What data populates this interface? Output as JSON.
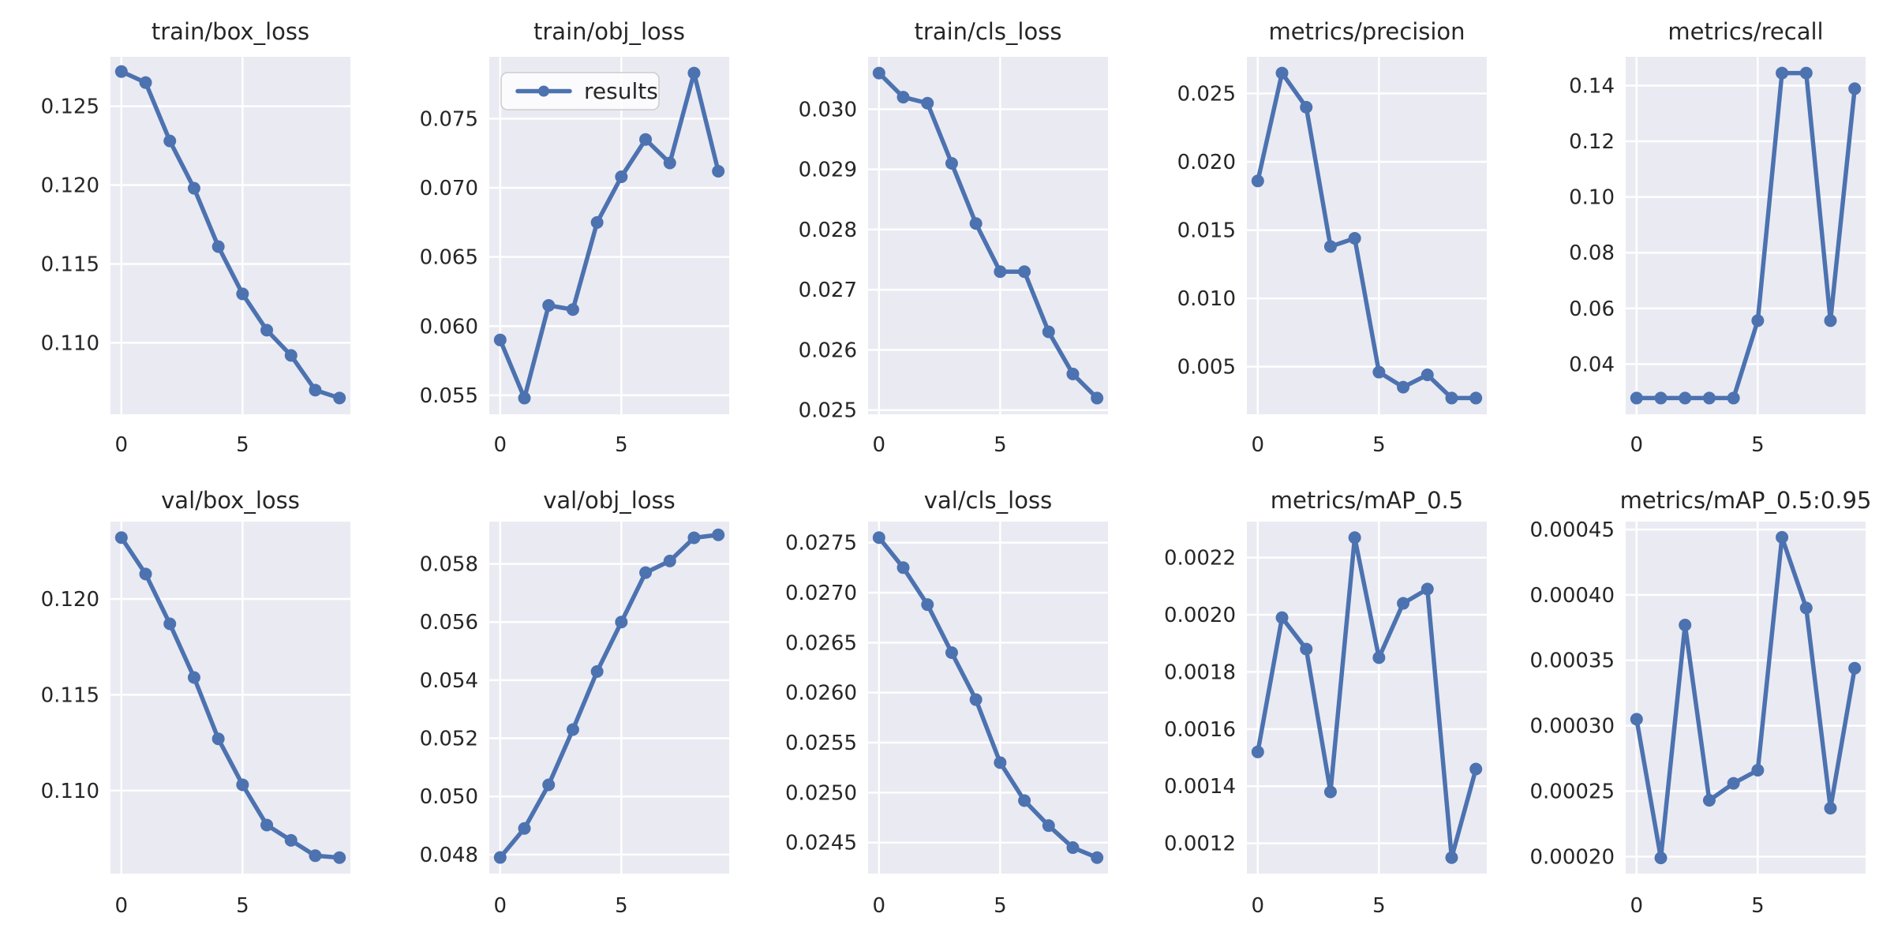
{
  "figure": {
    "kind": "matplotlib-results-figure",
    "background": "#ffffff",
    "style": {
      "axes_bg": "#eaeaf2",
      "grid_color": "#ffffff",
      "line_color": "#4c72b0",
      "text_color": "#262626",
      "legend_bg": "rgba(255,255,255,0.8)",
      "legend_border": "#cccccc"
    },
    "legend": {
      "label": "results",
      "subplot": "train/obj_loss",
      "position": "upper-left"
    },
    "grid": {
      "rows": 2,
      "cols": 5
    }
  },
  "chart_data": [
    {
      "type": "line",
      "title": "train/box_loss",
      "series_name": "results",
      "x": [
        0,
        1,
        2,
        3,
        4,
        5,
        6,
        7,
        8,
        9
      ],
      "y": [
        0.1272,
        0.1265,
        0.1228,
        0.1198,
        0.1161,
        0.1131,
        0.1108,
        0.1092,
        0.107,
        0.1065
      ],
      "xlim": [
        -0.45,
        9.45
      ],
      "ylim": [
        0.105465,
        0.128135
      ],
      "xticks": {
        "values": [
          0,
          5
        ],
        "labels": [
          "0",
          "5"
        ]
      },
      "yticks": {
        "values": [
          0.11,
          0.115,
          0.12,
          0.125
        ],
        "labels": [
          "0.110",
          "0.115",
          "0.120",
          "0.125"
        ]
      },
      "grid": true,
      "legend_visible": false
    },
    {
      "type": "line",
      "title": "train/obj_loss",
      "series_name": "results",
      "x": [
        0,
        1,
        2,
        3,
        4,
        5,
        6,
        7,
        8,
        9
      ],
      "y": [
        0.059,
        0.0548,
        0.0615,
        0.0612,
        0.0675,
        0.0708,
        0.0735,
        0.0718,
        0.0783,
        0.0712
      ],
      "xlim": [
        -0.45,
        9.45
      ],
      "ylim": [
        0.053625,
        0.079475
      ],
      "xticks": {
        "values": [
          0,
          5
        ],
        "labels": [
          "0",
          "5"
        ]
      },
      "yticks": {
        "values": [
          0.055,
          0.06,
          0.065,
          0.07,
          0.075
        ],
        "labels": [
          "0.055",
          "0.060",
          "0.065",
          "0.070",
          "0.075"
        ]
      },
      "grid": true,
      "legend_visible": true
    },
    {
      "type": "line",
      "title": "train/cls_loss",
      "series_name": "results",
      "x": [
        0,
        1,
        2,
        3,
        4,
        5,
        6,
        7,
        8,
        9
      ],
      "y": [
        0.0306,
        0.0302,
        0.0301,
        0.0291,
        0.0281,
        0.0273,
        0.0273,
        0.0263,
        0.0256,
        0.0252
      ],
      "xlim": [
        -0.45,
        9.45
      ],
      "ylim": [
        0.02493,
        0.03087
      ],
      "xticks": {
        "values": [
          0,
          5
        ],
        "labels": [
          "0",
          "5"
        ]
      },
      "yticks": {
        "values": [
          0.025,
          0.026,
          0.027,
          0.028,
          0.029,
          0.03
        ],
        "labels": [
          "0.025",
          "0.026",
          "0.027",
          "0.028",
          "0.029",
          "0.030"
        ]
      },
      "grid": true,
      "legend_visible": false
    },
    {
      "type": "line",
      "title": "metrics/precision",
      "series_name": "results",
      "x": [
        0,
        1,
        2,
        3,
        4,
        5,
        6,
        7,
        8,
        9
      ],
      "y": [
        0.0186,
        0.0265,
        0.024,
        0.0138,
        0.0144,
        0.0046,
        0.0035,
        0.0044,
        0.0027,
        0.0027
      ],
      "xlim": [
        -0.45,
        9.45
      ],
      "ylim": [
        0.00151,
        0.02769
      ],
      "xticks": {
        "values": [
          0,
          5
        ],
        "labels": [
          "0",
          "5"
        ]
      },
      "yticks": {
        "values": [
          0.005,
          0.01,
          0.015,
          0.02,
          0.025
        ],
        "labels": [
          "0.005",
          "0.010",
          "0.015",
          "0.020",
          "0.025"
        ]
      },
      "grid": true,
      "legend_visible": false
    },
    {
      "type": "line",
      "title": "metrics/recall",
      "series_name": "results",
      "x": [
        0,
        1,
        2,
        3,
        4,
        5,
        6,
        7,
        8,
        9
      ],
      "y": [
        0.0278,
        0.0278,
        0.0278,
        0.0278,
        0.0278,
        0.0556,
        0.1445,
        0.1445,
        0.0556,
        0.1389
      ],
      "xlim": [
        -0.45,
        9.45
      ],
      "ylim": [
        0.021965,
        0.150335
      ],
      "xticks": {
        "values": [
          0,
          5
        ],
        "labels": [
          "0",
          "5"
        ]
      },
      "yticks": {
        "values": [
          0.04,
          0.06,
          0.08,
          0.1,
          0.12,
          0.14
        ],
        "labels": [
          "0.04",
          "0.06",
          "0.08",
          "0.10",
          "0.12",
          "0.14"
        ]
      },
      "grid": true,
      "legend_visible": false
    },
    {
      "type": "line",
      "title": "val/box_loss",
      "series_name": "results",
      "x": [
        0,
        1,
        2,
        3,
        4,
        5,
        6,
        7,
        8,
        9
      ],
      "y": [
        0.1232,
        0.1213,
        0.1187,
        0.1159,
        0.1127,
        0.1103,
        0.1082,
        0.1074,
        0.1066,
        0.1065
      ],
      "xlim": [
        -0.45,
        9.45
      ],
      "ylim": [
        0.105665,
        0.124035
      ],
      "xticks": {
        "values": [
          0,
          5
        ],
        "labels": [
          "0",
          "5"
        ]
      },
      "yticks": {
        "values": [
          0.11,
          0.115,
          0.12
        ],
        "labels": [
          "0.110",
          "0.115",
          "0.120"
        ]
      },
      "grid": true,
      "legend_visible": false
    },
    {
      "type": "line",
      "title": "val/obj_loss",
      "series_name": "results",
      "x": [
        0,
        1,
        2,
        3,
        4,
        5,
        6,
        7,
        8,
        9
      ],
      "y": [
        0.0479,
        0.0489,
        0.0504,
        0.0523,
        0.0543,
        0.056,
        0.0577,
        0.0581,
        0.0589,
        0.059
      ],
      "xlim": [
        -0.45,
        9.45
      ],
      "ylim": [
        0.047345,
        0.059455
      ],
      "xticks": {
        "values": [
          0,
          5
        ],
        "labels": [
          "0",
          "5"
        ]
      },
      "yticks": {
        "values": [
          0.048,
          0.05,
          0.052,
          0.054,
          0.056,
          0.058
        ],
        "labels": [
          "0.048",
          "0.050",
          "0.052",
          "0.054",
          "0.056",
          "0.058"
        ]
      },
      "grid": true,
      "legend_visible": false
    },
    {
      "type": "line",
      "title": "val/cls_loss",
      "series_name": "results",
      "x": [
        0,
        1,
        2,
        3,
        4,
        5,
        6,
        7,
        8,
        9
      ],
      "y": [
        0.02755,
        0.02725,
        0.02688,
        0.0264,
        0.02593,
        0.0253,
        0.02492,
        0.02467,
        0.02445,
        0.02435
      ],
      "xlim": [
        -0.45,
        9.45
      ],
      "ylim": [
        0.02419,
        0.02771
      ],
      "xticks": {
        "values": [
          0,
          5
        ],
        "labels": [
          "0",
          "5"
        ]
      },
      "yticks": {
        "values": [
          0.0245,
          0.025,
          0.0255,
          0.026,
          0.0265,
          0.027,
          0.0275
        ],
        "labels": [
          "0.0245",
          "0.0250",
          "0.0255",
          "0.0260",
          "0.0265",
          "0.0270",
          "0.0275"
        ]
      },
      "grid": true,
      "legend_visible": false
    },
    {
      "type": "line",
      "title": "metrics/mAP_0.5",
      "series_name": "results",
      "x": [
        0,
        1,
        2,
        3,
        4,
        5,
        6,
        7,
        8,
        9
      ],
      "y": [
        0.00152,
        0.00199,
        0.00188,
        0.00138,
        0.00227,
        0.00185,
        0.00204,
        0.00209,
        0.00115,
        0.00146
      ],
      "xlim": [
        -0.45,
        9.45
      ],
      "ylim": [
        0.001094,
        0.002326
      ],
      "xticks": {
        "values": [
          0,
          5
        ],
        "labels": [
          "0",
          "5"
        ]
      },
      "yticks": {
        "values": [
          0.0012,
          0.0014,
          0.0016,
          0.0018,
          0.002,
          0.0022
        ],
        "labels": [
          "0.0012",
          "0.0014",
          "0.0016",
          "0.0018",
          "0.0020",
          "0.0022"
        ]
      },
      "grid": true,
      "legend_visible": false
    },
    {
      "type": "line",
      "title": "metrics/mAP_0.5:0.95",
      "series_name": "results",
      "x": [
        0,
        1,
        2,
        3,
        4,
        5,
        6,
        7,
        8,
        9
      ],
      "y": [
        0.000305,
        0.000199,
        0.000377,
        0.000243,
        0.000256,
        0.000266,
        0.000444,
        0.00039,
        0.000237,
        0.000344
      ],
      "xlim": [
        -0.45,
        9.45
      ],
      "ylim": [
        0.000187,
        0.000456
      ],
      "xticks": {
        "values": [
          0,
          5
        ],
        "labels": [
          "0",
          "5"
        ]
      },
      "yticks": {
        "values": [
          0.0002,
          0.00025,
          0.0003,
          0.00035,
          0.0004,
          0.00045
        ],
        "labels": [
          "0.00020",
          "0.00025",
          "0.00030",
          "0.00035",
          "0.00040",
          "0.00045"
        ]
      },
      "grid": true,
      "legend_visible": false
    }
  ]
}
